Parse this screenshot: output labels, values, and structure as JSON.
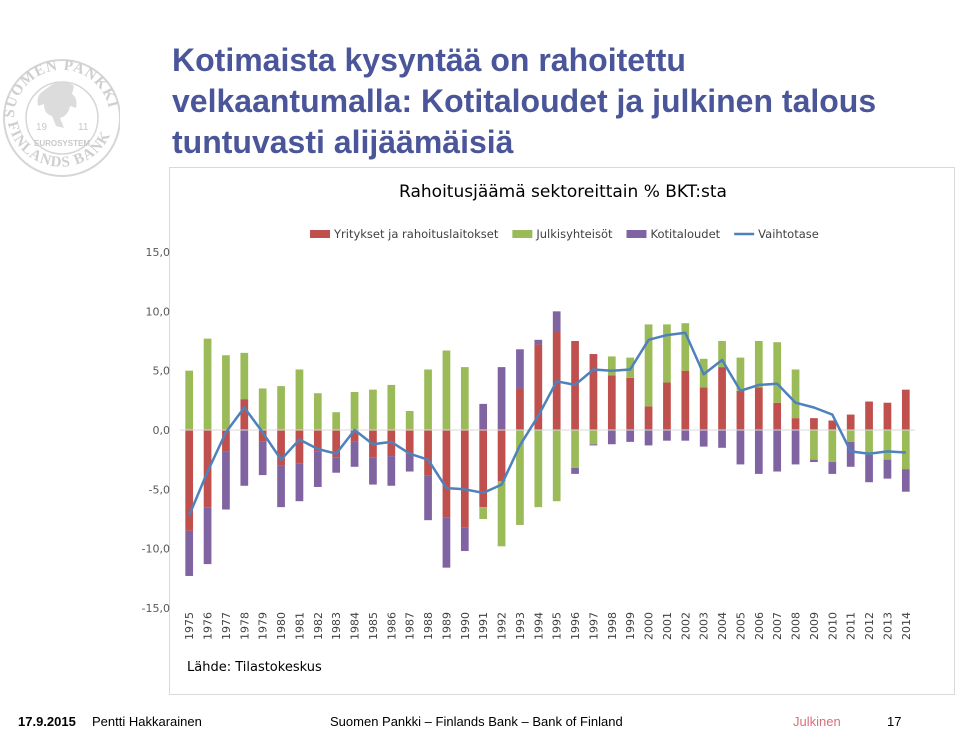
{
  "slide": {
    "title": "Kotimaista kysyntää on rahoitettu velkaantumalla: Kotitaloudet ja julkinen talous tuntuvasti alijäämäisiä",
    "source": "Lähde: Tilastokeskus"
  },
  "footer": {
    "date": "17.9.2015",
    "author": "Pentti Hakkarainen",
    "organization": "Suomen Pankki – Finlands Bank – Bank of Finland",
    "classification": "Julkinen",
    "page_number": "17"
  },
  "logo": {
    "text_top": "SUOMEN PANKKI",
    "text_bottom": "FINLANDS BANK",
    "text_mid": "EUROSYSTEM",
    "year_left": "19",
    "year_right": "11"
  },
  "colors": {
    "title": "#4a5699",
    "corporations": "#c0504d",
    "public": "#9bbb59",
    "households": "#8064a2",
    "current_account": "#4f81bd",
    "classification": "#d8707a"
  },
  "chart_data": {
    "type": "bar",
    "stacked": true,
    "title": "Rahoitusjäämä sektoreittain % BKT:sta",
    "xlabel": "",
    "ylabel": "",
    "ylim": [
      -15,
      15
    ],
    "yticks": [
      "15,0",
      "10,0",
      "5,0",
      "0,0",
      "-5,0",
      "-10,0",
      "-15,0"
    ],
    "ytick_values": [
      15,
      10,
      5,
      0,
      -5,
      -10,
      -15
    ],
    "grid": false,
    "legend_position": "top",
    "categories": [
      "1975",
      "1976",
      "1977",
      "1978",
      "1979",
      "1980",
      "1981",
      "1982",
      "1983",
      "1984",
      "1985",
      "1986",
      "1987",
      "1988",
      "1989",
      "1990",
      "1991",
      "1992",
      "1993",
      "1994",
      "1995",
      "1996",
      "1997",
      "1998",
      "1999",
      "2000",
      "2001",
      "2002",
      "2003",
      "2004",
      "2005",
      "2006",
      "2007",
      "2008",
      "2009",
      "2010",
      "2011",
      "2012",
      "2013",
      "2014"
    ],
    "series": [
      {
        "name": "Yritykset ja rahoituslaitokset",
        "type": "bar",
        "values": [
          -8.5,
          -6.5,
          -1.8,
          2.6,
          -1.0,
          -3.0,
          -2.8,
          -1.8,
          -2.3,
          -1.0,
          -2.3,
          -2.2,
          -2.0,
          -3.8,
          -7.4,
          -8.2,
          -6.5,
          -4.3,
          3.5,
          7.2,
          8.3,
          7.5,
          6.4,
          4.6,
          4.4,
          2.0,
          4.0,
          5.0,
          3.6,
          5.3,
          3.3,
          3.6,
          2.3,
          1.0,
          1.0,
          0.8,
          1.3,
          2.4,
          2.3,
          3.4
        ]
      },
      {
        "name": "Julkisyhteisöt",
        "type": "bar",
        "values": [
          5.0,
          7.7,
          6.3,
          3.9,
          3.5,
          3.7,
          5.1,
          3.1,
          1.5,
          3.2,
          3.4,
          3.8,
          1.6,
          5.1,
          6.7,
          5.3,
          -1.0,
          -5.5,
          -8.0,
          -6.5,
          -6.0,
          -3.2,
          -1.2,
          1.6,
          1.7,
          6.9,
          4.9,
          4.0,
          2.4,
          2.2,
          2.8,
          3.9,
          5.1,
          4.1,
          -2.5,
          -2.7,
          -1.0,
          -2.1,
          -2.5,
          -3.3
        ]
      },
      {
        "name": "Kotitaloudet",
        "type": "bar",
        "values": [
          -3.8,
          -4.8,
          -4.9,
          -4.7,
          -2.8,
          -3.5,
          -3.2,
          -3.0,
          -1.3,
          -2.1,
          -2.3,
          -2.5,
          -1.5,
          -3.8,
          -4.2,
          -2.0,
          2.2,
          5.3,
          3.3,
          0.4,
          1.7,
          -0.5,
          -0.1,
          -1.2,
          -1.0,
          -1.3,
          -0.9,
          -0.9,
          -1.4,
          -1.5,
          -2.9,
          -3.7,
          -3.5,
          -2.9,
          -0.2,
          -1.0,
          -2.1,
          -2.3,
          -1.6,
          -1.9
        ]
      },
      {
        "name": "Vaihtotase",
        "type": "line",
        "values": [
          -7.2,
          -3.5,
          -0.2,
          1.9,
          -0.2,
          -2.5,
          -0.8,
          -1.6,
          -2.0,
          0.0,
          -1.2,
          -1.0,
          -2.0,
          -2.5,
          -4.9,
          -5.0,
          -5.3,
          -4.6,
          -1.3,
          1.2,
          4.1,
          3.8,
          5.1,
          5.0,
          5.1,
          7.6,
          8.0,
          8.2,
          4.7,
          5.9,
          3.3,
          3.8,
          3.9,
          2.3,
          1.9,
          1.3,
          -1.8,
          -2.0,
          -1.8,
          -1.9
        ]
      }
    ]
  }
}
